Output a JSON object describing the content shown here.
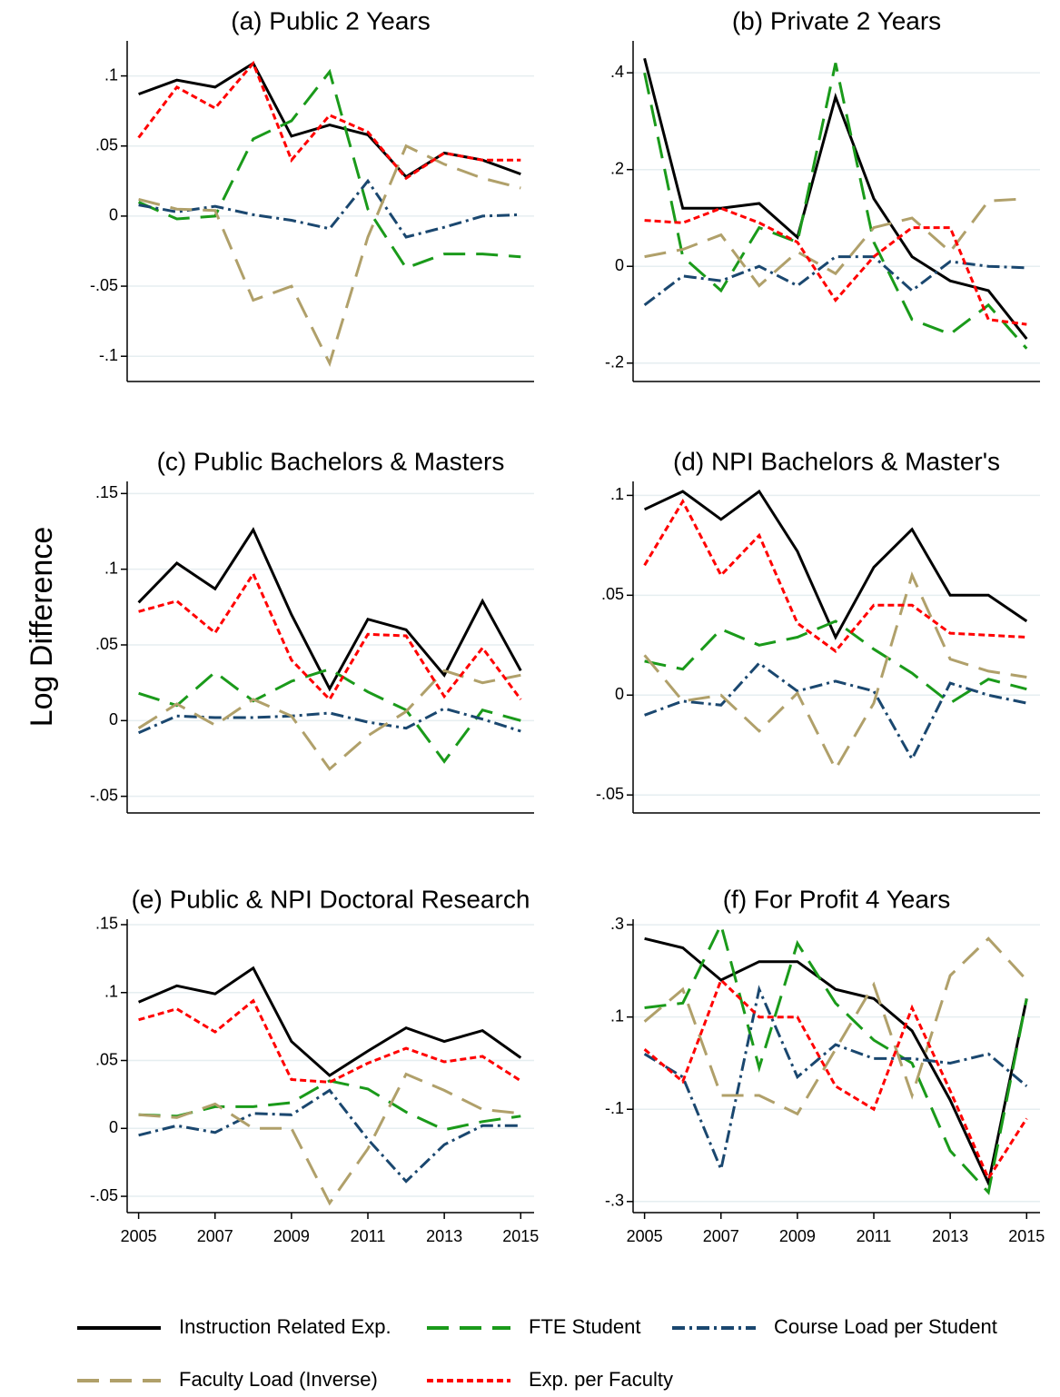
{
  "ylabel": "Log Difference",
  "chart_data": [
    {
      "type": "line",
      "title": "(a) Public 2 Years",
      "x": [
        2005,
        2006,
        2007,
        2008,
        2009,
        2010,
        2011,
        2012,
        2013,
        2014,
        2015
      ],
      "xlim": [
        2004.7,
        2015.35
      ],
      "ylim": [
        -0.118,
        0.125
      ],
      "yticks": [
        {
          "value": -0.1,
          "label": "-.1"
        },
        {
          "value": -0.05,
          "label": "-.05"
        },
        0,
        {
          "value": 0.05,
          "label": ".05"
        },
        {
          "value": 0.1,
          "label": ".1"
        }
      ],
      "grid": true,
      "series": [
        {
          "name": "Instruction Related Exp.",
          "color": "#000000",
          "values": [
            0.087,
            0.097,
            0.092,
            0.109,
            0.057,
            0.065,
            0.058,
            0.028,
            0.045,
            0.04,
            0.03
          ]
        },
        {
          "name": "FTE Student",
          "color": "#1a9a1a",
          "values": [
            0.01,
            -0.002,
            0.0,
            0.055,
            0.068,
            0.103,
            0.005,
            -0.037,
            -0.027,
            -0.027,
            -0.029
          ]
        },
        {
          "name": "Course Load per Student",
          "color": "#1a476f",
          "values": [
            0.008,
            0.003,
            0.007,
            0.001,
            -0.003,
            -0.009,
            0.025,
            -0.015,
            -0.008,
            0.0,
            0.001
          ]
        },
        {
          "name": "Faculty Load (Inverse)",
          "color": "#b0a06a",
          "values": [
            0.012,
            0.005,
            0.004,
            -0.06,
            -0.05,
            -0.105,
            -0.015,
            0.05,
            0.037,
            0.027,
            0.02
          ]
        },
        {
          "name": "Exp. per Faculty",
          "color": "#ff0000",
          "values": [
            0.056,
            0.092,
            0.077,
            0.109,
            0.04,
            0.072,
            0.06,
            0.027,
            0.045,
            0.04,
            0.04
          ]
        }
      ]
    },
    {
      "type": "line",
      "title": "(b) Private 2 Years",
      "x": [
        2005,
        2006,
        2007,
        2008,
        2009,
        2010,
        2011,
        2012,
        2013,
        2014,
        2015
      ],
      "xlim": [
        2004.7,
        2015.35
      ],
      "ylim": [
        -0.238,
        0.466
      ],
      "yticks": [
        {
          "value": -0.2,
          "label": "-.2"
        },
        0,
        {
          "value": 0.2,
          "label": ".2"
        },
        {
          "value": 0.4,
          "label": ".4"
        }
      ],
      "grid": true,
      "series": [
        {
          "name": "Instruction Related Exp.",
          "color": "#000000",
          "values": [
            0.43,
            0.12,
            0.12,
            0.13,
            0.06,
            0.35,
            0.14,
            0.02,
            -0.03,
            -0.05,
            -0.15
          ]
        },
        {
          "name": "FTE Student",
          "color": "#1a9a1a",
          "values": [
            0.4,
            0.02,
            -0.05,
            0.08,
            0.05,
            0.42,
            0.05,
            -0.11,
            -0.14,
            -0.08,
            -0.17
          ]
        },
        {
          "name": "Course Load per Student",
          "color": "#1a476f",
          "values": [
            -0.08,
            -0.02,
            -0.03,
            0.0,
            -0.04,
            0.02,
            0.02,
            -0.05,
            0.01,
            0.0,
            -0.003
          ]
        },
        {
          "name": "Faculty Load (Inverse)",
          "color": "#b0a06a",
          "values": [
            0.02,
            0.035,
            0.065,
            -0.04,
            0.03,
            -0.015,
            0.08,
            0.1,
            0.03,
            0.135,
            0.14
          ]
        },
        {
          "name": "Exp. per Faculty",
          "color": "#ff0000",
          "values": [
            0.095,
            0.09,
            0.12,
            0.09,
            0.05,
            -0.07,
            0.02,
            0.08,
            0.08,
            -0.11,
            -0.12
          ]
        }
      ]
    },
    {
      "type": "line",
      "title": "(c) Public Bachelors & Masters",
      "x": [
        2005,
        2006,
        2007,
        2008,
        2009,
        2010,
        2011,
        2012,
        2013,
        2014,
        2015
      ],
      "xlim": [
        2004.7,
        2015.35
      ],
      "ylim": [
        -0.061,
        0.158
      ],
      "yticks": [
        {
          "value": -0.05,
          "label": "-.05"
        },
        0,
        {
          "value": 0.05,
          "label": ".05"
        },
        {
          "value": 0.1,
          "label": ".1"
        },
        {
          "value": 0.15,
          "label": ".15"
        }
      ],
      "grid": true,
      "series": [
        {
          "name": "Instruction Related Exp.",
          "color": "#000000",
          "values": [
            0.078,
            0.104,
            0.087,
            0.126,
            0.07,
            0.021,
            0.067,
            0.06,
            0.03,
            0.079,
            0.033
          ]
        },
        {
          "name": "FTE Student",
          "color": "#1a9a1a",
          "values": [
            0.018,
            0.01,
            0.032,
            0.013,
            0.026,
            0.034,
            0.019,
            0.007,
            -0.027,
            0.007,
            0.0
          ]
        },
        {
          "name": "Course Load per Student",
          "color": "#1a476f",
          "values": [
            -0.008,
            0.003,
            0.002,
            0.002,
            0.003,
            0.005,
            -0.001,
            -0.005,
            0.008,
            0.001,
            -0.007
          ]
        },
        {
          "name": "Faculty Load (Inverse)",
          "color": "#b0a06a",
          "values": [
            -0.005,
            0.011,
            -0.003,
            0.014,
            0.003,
            -0.032,
            -0.01,
            0.006,
            0.033,
            0.025,
            0.03
          ]
        },
        {
          "name": "Exp. per Faculty",
          "color": "#ff0000",
          "values": [
            0.072,
            0.079,
            0.058,
            0.097,
            0.04,
            0.014,
            0.057,
            0.056,
            0.016,
            0.048,
            0.014
          ]
        }
      ]
    },
    {
      "type": "line",
      "title": "(d) NPI Bachelors & Master's",
      "x": [
        2005,
        2006,
        2007,
        2008,
        2009,
        2010,
        2011,
        2012,
        2013,
        2014,
        2015
      ],
      "xlim": [
        2004.7,
        2015.35
      ],
      "ylim": [
        -0.059,
        0.107
      ],
      "yticks": [
        {
          "value": -0.05,
          "label": "-.05"
        },
        0,
        {
          "value": 0.05,
          "label": ".05"
        },
        {
          "value": 0.1,
          "label": ".1"
        }
      ],
      "grid": true,
      "series": [
        {
          "name": "Instruction Related Exp.",
          "color": "#000000",
          "values": [
            0.093,
            0.102,
            0.088,
            0.102,
            0.072,
            0.029,
            0.064,
            0.083,
            0.05,
            0.05,
            0.037
          ]
        },
        {
          "name": "FTE Student",
          "color": "#1a9a1a",
          "values": [
            0.017,
            0.013,
            0.033,
            0.025,
            0.029,
            0.037,
            0.023,
            0.011,
            -0.004,
            0.008,
            0.003
          ]
        },
        {
          "name": "Course Load per Student",
          "color": "#1a476f",
          "values": [
            -0.01,
            -0.003,
            -0.005,
            0.016,
            0.002,
            0.007,
            0.002,
            -0.032,
            0.006,
            0.0,
            -0.004
          ]
        },
        {
          "name": "Faculty Load (Inverse)",
          "color": "#b0a06a",
          "values": [
            0.02,
            -0.003,
            0.0,
            -0.018,
            0.001,
            -0.037,
            -0.004,
            0.06,
            0.018,
            0.012,
            0.009
          ]
        },
        {
          "name": "Exp. per Faculty",
          "color": "#ff0000",
          "values": [
            0.065,
            0.097,
            0.06,
            0.08,
            0.036,
            0.022,
            0.045,
            0.045,
            0.031,
            0.03,
            0.029
          ]
        }
      ]
    },
    {
      "type": "line",
      "title": "(e) Public & NPI Doctoral Research",
      "x": [
        2005,
        2006,
        2007,
        2008,
        2009,
        2010,
        2011,
        2012,
        2013,
        2014,
        2015
      ],
      "xlim": [
        2004.7,
        2015.35
      ],
      "ylim": [
        -0.062,
        0.154
      ],
      "xticks": [
        2005,
        2007,
        2009,
        2011,
        2013,
        2015
      ],
      "yticks": [
        {
          "value": -0.05,
          "label": "-.05"
        },
        0,
        {
          "value": 0.05,
          "label": ".05"
        },
        {
          "value": 0.1,
          "label": ".1"
        },
        {
          "value": 0.15,
          "label": ".15"
        }
      ],
      "grid": true,
      "series": [
        {
          "name": "Instruction Related Exp.",
          "color": "#000000",
          "values": [
            0.093,
            0.105,
            0.099,
            0.118,
            0.064,
            0.039,
            0.057,
            0.074,
            0.064,
            0.072,
            0.052
          ]
        },
        {
          "name": "FTE Student",
          "color": "#1a9a1a",
          "values": [
            0.01,
            0.009,
            0.016,
            0.016,
            0.019,
            0.035,
            0.029,
            0.012,
            -0.001,
            0.005,
            0.009
          ]
        },
        {
          "name": "Course Load per Student",
          "color": "#1a476f",
          "values": [
            -0.005,
            0.002,
            -0.003,
            0.011,
            0.01,
            0.028,
            -0.008,
            -0.039,
            -0.012,
            0.002,
            0.002
          ]
        },
        {
          "name": "Faculty Load (Inverse)",
          "color": "#b0a06a",
          "values": [
            0.01,
            0.008,
            0.018,
            0.0,
            0.0,
            -0.055,
            -0.015,
            0.04,
            0.028,
            0.014,
            0.011
          ]
        },
        {
          "name": "Exp. per Faculty",
          "color": "#ff0000",
          "values": [
            0.08,
            0.088,
            0.071,
            0.094,
            0.036,
            0.034,
            0.048,
            0.059,
            0.049,
            0.053,
            0.035
          ]
        }
      ]
    },
    {
      "type": "line",
      "title": "(f) For Profit 4 Years",
      "x": [
        2005,
        2006,
        2007,
        2008,
        2009,
        2010,
        2011,
        2012,
        2013,
        2014,
        2015
      ],
      "xlim": [
        2004.7,
        2015.35
      ],
      "ylim": [
        -0.324,
        0.312
      ],
      "xticks": [
        2005,
        2007,
        2009,
        2011,
        2013,
        2015
      ],
      "yticks": [
        {
          "value": -0.3,
          "label": "-.3"
        },
        {
          "value": -0.1,
          "label": "-.1"
        },
        {
          "value": 0.1,
          "label": ".1"
        },
        {
          "value": 0.3,
          "label": ".3"
        }
      ],
      "grid": true,
      "series": [
        {
          "name": "Instruction Related Exp.",
          "color": "#000000",
          "values": [
            0.27,
            0.25,
            0.18,
            0.22,
            0.22,
            0.16,
            0.14,
            0.07,
            -0.08,
            -0.26,
            0.14
          ]
        },
        {
          "name": "FTE Student",
          "color": "#1a9a1a",
          "values": [
            0.12,
            0.13,
            0.3,
            -0.01,
            0.26,
            0.13,
            0.05,
            0.0,
            -0.19,
            -0.28,
            0.14
          ]
        },
        {
          "name": "Course Load per Student",
          "color": "#1a476f",
          "values": [
            0.02,
            -0.03,
            -0.23,
            0.16,
            -0.03,
            0.04,
            0.01,
            0.01,
            0.0,
            0.02,
            -0.05
          ]
        },
        {
          "name": "Faculty Load (Inverse)",
          "color": "#b0a06a",
          "values": [
            0.09,
            0.16,
            -0.07,
            -0.07,
            -0.11,
            0.03,
            0.17,
            -0.07,
            0.19,
            0.27,
            0.18
          ]
        },
        {
          "name": "Exp. per Faculty",
          "color": "#ff0000",
          "values": [
            0.03,
            -0.04,
            0.18,
            0.1,
            0.1,
            -0.05,
            -0.1,
            0.12,
            -0.06,
            -0.25,
            -0.12
          ]
        }
      ]
    }
  ]
}
